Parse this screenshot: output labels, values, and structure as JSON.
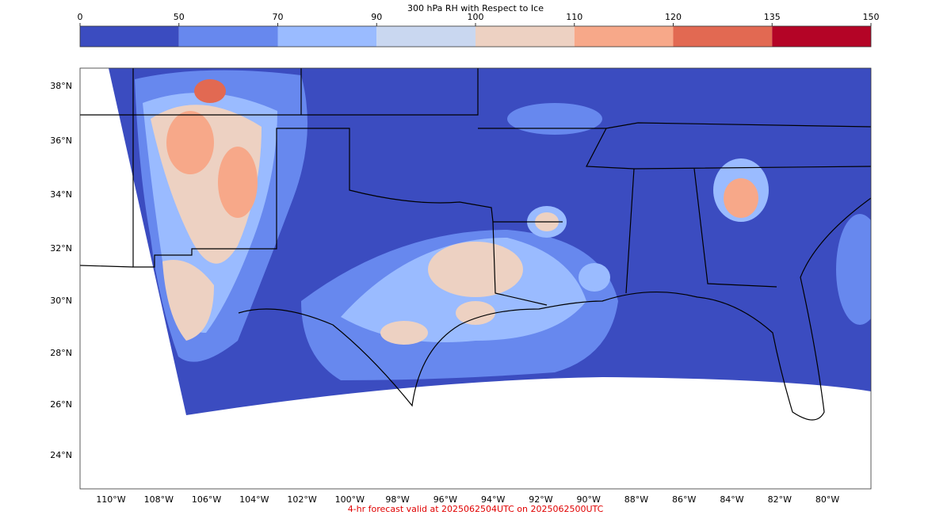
{
  "colorbar": {
    "title": "300 hPa RH with Respect to Ice",
    "levels": [
      0,
      50,
      70,
      90,
      100,
      110,
      120,
      135,
      150
    ],
    "colors": [
      "#3b4cc0",
      "#6788ee",
      "#9abbff",
      "#c9d7f0",
      "#edd1c2",
      "#f7a889",
      "#e26952",
      "#b40426"
    ]
  },
  "map": {
    "lat_labels": [
      "38°N",
      "36°N",
      "34°N",
      "32°N",
      "30°N",
      "28°N",
      "26°N",
      "24°N"
    ],
    "lon_labels": [
      "110°W",
      "108°W",
      "106°W",
      "104°W",
      "102°W",
      "100°W",
      "98°W",
      "96°W",
      "94°W",
      "92°W",
      "90°W",
      "88°W",
      "86°W",
      "84°W",
      "82°W",
      "80°W"
    ]
  },
  "footer": "4-hr forecast valid at 2025062504UTC on 2025062500UTC"
}
